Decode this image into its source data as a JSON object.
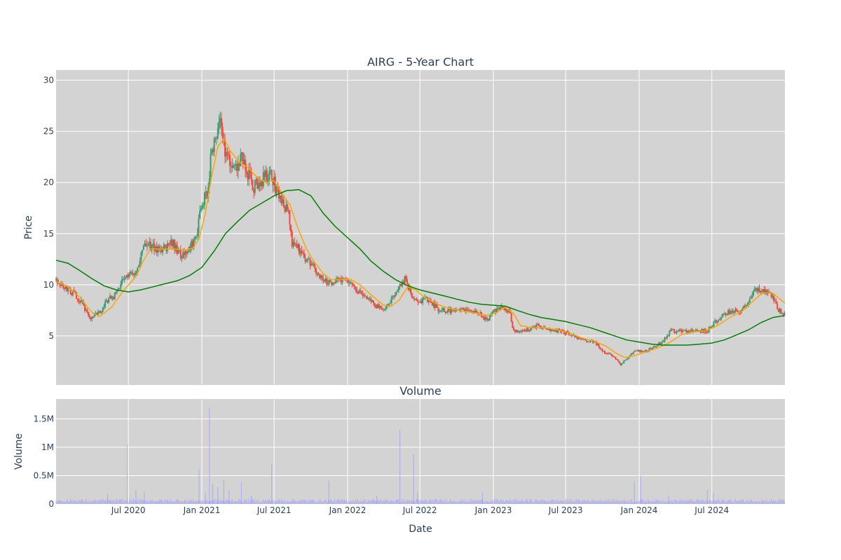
{
  "chart_data": [
    {
      "type": "candlestick",
      "title": "AIRG - 5-Year Chart",
      "ylabel": "Price",
      "ylim": [
        0.2,
        31
      ],
      "xlim": [
        "2020-01-02",
        "2024-12-31"
      ],
      "y_ticks": [
        "5",
        "10",
        "15",
        "20",
        "25",
        "30"
      ],
      "y_tick_values": [
        5,
        10,
        15,
        20,
        25,
        30
      ],
      "candle_colors": {
        "up": "#3d9970",
        "down": "#ff4136"
      },
      "price_path": [
        [
          "2020-01-02",
          10.5
        ],
        [
          "2020-02-01",
          9.5
        ],
        [
          "2020-02-20",
          9.0
        ],
        [
          "2020-03-10",
          8.0
        ],
        [
          "2020-03-25",
          6.8
        ],
        [
          "2020-04-10",
          7.0
        ],
        [
          "2020-04-25",
          7.5
        ],
        [
          "2020-05-10",
          8.5
        ],
        [
          "2020-06-01",
          9.0
        ],
        [
          "2020-06-15",
          10.5
        ],
        [
          "2020-07-01",
          10.8
        ],
        [
          "2020-07-20",
          11.0
        ],
        [
          "2020-08-05",
          13.5
        ],
        [
          "2020-08-20",
          14.0
        ],
        [
          "2020-09-10",
          13.5
        ],
        [
          "2020-10-01",
          13.5
        ],
        [
          "2020-10-20",
          14.0
        ],
        [
          "2020-11-10",
          13.0
        ],
        [
          "2020-12-01",
          13.5
        ],
        [
          "2020-12-20",
          15.0
        ],
        [
          "2020-12-30",
          17.5
        ],
        [
          "2021-01-15",
          19.0
        ],
        [
          "2021-01-25",
          23.0
        ],
        [
          "2021-02-05",
          24.0
        ],
        [
          "2021-02-15",
          26.5
        ],
        [
          "2021-02-25",
          23.5
        ],
        [
          "2021-03-10",
          22.5
        ],
        [
          "2021-03-25",
          21.0
        ],
        [
          "2021-04-10",
          22.5
        ],
        [
          "2021-04-25",
          21.0
        ],
        [
          "2021-05-10",
          19.5
        ],
        [
          "2021-05-25",
          20.0
        ],
        [
          "2021-06-10",
          20.5
        ],
        [
          "2021-06-25",
          20.5
        ],
        [
          "2021-07-10",
          19.0
        ],
        [
          "2021-07-25",
          17.5
        ],
        [
          "2021-08-05",
          18.0
        ],
        [
          "2021-08-15",
          14.0
        ],
        [
          "2021-09-01",
          13.5
        ],
        [
          "2021-09-20",
          12.5
        ],
        [
          "2021-10-10",
          11.5
        ],
        [
          "2021-10-30",
          10.5
        ],
        [
          "2021-11-20",
          10.0
        ],
        [
          "2021-12-15",
          10.5
        ],
        [
          "2022-01-05",
          10.5
        ],
        [
          "2022-01-25",
          9.5
        ],
        [
          "2022-02-15",
          9.0
        ],
        [
          "2022-03-10",
          8.0
        ],
        [
          "2022-04-01",
          7.5
        ],
        [
          "2022-04-20",
          8.5
        ],
        [
          "2022-05-10",
          10.0
        ],
        [
          "2022-05-25",
          10.5
        ],
        [
          "2022-06-10",
          9.0
        ],
        [
          "2022-07-01",
          8.5
        ],
        [
          "2022-07-25",
          8.5
        ],
        [
          "2022-08-20",
          7.5
        ],
        [
          "2022-09-20",
          7.5
        ],
        [
          "2022-10-20",
          7.5
        ],
        [
          "2022-11-20",
          7.5
        ],
        [
          "2022-12-15",
          6.5
        ],
        [
          "2023-01-05",
          7.5
        ],
        [
          "2023-01-20",
          8.0
        ],
        [
          "2023-02-10",
          7.5
        ],
        [
          "2023-02-20",
          5.5
        ],
        [
          "2023-03-20",
          5.5
        ],
        [
          "2023-04-20",
          6.0
        ],
        [
          "2023-05-20",
          5.5
        ],
        [
          "2023-06-20",
          5.5
        ],
        [
          "2023-07-20",
          5.0
        ],
        [
          "2023-08-20",
          4.5
        ],
        [
          "2023-09-10",
          4.5
        ],
        [
          "2023-10-01",
          3.5
        ],
        [
          "2023-10-30",
          3.0
        ],
        [
          "2023-11-15",
          2.2
        ],
        [
          "2023-12-01",
          2.8
        ],
        [
          "2023-12-20",
          3.5
        ],
        [
          "2024-01-20",
          3.5
        ],
        [
          "2024-02-10",
          4.0
        ],
        [
          "2024-03-01",
          4.5
        ],
        [
          "2024-03-20",
          5.5
        ],
        [
          "2024-04-20",
          5.5
        ],
        [
          "2024-05-20",
          5.5
        ],
        [
          "2024-06-20",
          5.5
        ],
        [
          "2024-07-10",
          6.5
        ],
        [
          "2024-07-30",
          7.0
        ],
        [
          "2024-08-20",
          7.5
        ],
        [
          "2024-09-10",
          7.5
        ],
        [
          "2024-09-30",
          8.0
        ],
        [
          "2024-10-15",
          9.5
        ],
        [
          "2024-11-05",
          9.5
        ],
        [
          "2024-11-25",
          9.0
        ],
        [
          "2024-12-15",
          7.5
        ],
        [
          "2024-12-31",
          7.0
        ]
      ],
      "series": [
        {
          "type": "line",
          "color": "#ffa500",
          "points": [
            [
              "2020-01-02",
              10.3
            ],
            [
              "2020-02-01",
              9.8
            ],
            [
              "2020-03-01",
              8.8
            ],
            [
              "2020-04-01",
              7.3
            ],
            [
              "2020-04-20",
              6.9
            ],
            [
              "2020-05-20",
              7.8
            ],
            [
              "2020-06-20",
              9.5
            ],
            [
              "2020-07-20",
              10.8
            ],
            [
              "2020-08-10",
              12.5
            ],
            [
              "2020-08-25",
              13.5
            ],
            [
              "2020-09-20",
              13.5
            ],
            [
              "2020-10-20",
              13.5
            ],
            [
              "2020-11-20",
              13.4
            ],
            [
              "2020-12-10",
              13.6
            ],
            [
              "2020-12-25",
              14.5
            ],
            [
              "2021-01-10",
              17.0
            ],
            [
              "2021-01-25",
              20.5
            ],
            [
              "2021-02-10",
              23.5
            ],
            [
              "2021-02-25",
              24.3
            ],
            [
              "2021-03-15",
              23.0
            ],
            [
              "2021-04-05",
              22.0
            ],
            [
              "2021-04-25",
              21.5
            ],
            [
              "2021-05-20",
              20.5
            ],
            [
              "2021-06-10",
              20.0
            ],
            [
              "2021-06-30",
              20.2
            ],
            [
              "2021-07-20",
              19.0
            ],
            [
              "2021-08-10",
              17.8
            ],
            [
              "2021-08-30",
              15.5
            ],
            [
              "2021-09-20",
              13.5
            ],
            [
              "2021-10-10",
              12.2
            ],
            [
              "2021-10-30",
              11.2
            ],
            [
              "2021-11-20",
              10.5
            ],
            [
              "2021-12-15",
              10.5
            ],
            [
              "2022-01-10",
              10.5
            ],
            [
              "2022-02-01",
              10.0
            ],
            [
              "2022-03-01",
              9.0
            ],
            [
              "2022-04-01",
              8.0
            ],
            [
              "2022-04-20",
              7.9
            ],
            [
              "2022-05-10",
              8.5
            ],
            [
              "2022-06-01",
              9.8
            ],
            [
              "2022-06-20",
              9.5
            ],
            [
              "2022-07-15",
              8.7
            ],
            [
              "2022-08-20",
              8.0
            ],
            [
              "2022-09-20",
              7.6
            ],
            [
              "2022-10-20",
              7.4
            ],
            [
              "2022-11-20",
              7.2
            ],
            [
              "2022-12-20",
              7.0
            ],
            [
              "2023-01-10",
              7.3
            ],
            [
              "2023-01-30",
              7.8
            ],
            [
              "2023-02-20",
              7.2
            ],
            [
              "2023-03-10",
              6.0
            ],
            [
              "2023-04-10",
              5.8
            ],
            [
              "2023-05-10",
              5.8
            ],
            [
              "2023-06-10",
              5.6
            ],
            [
              "2023-07-10",
              5.3
            ],
            [
              "2023-08-10",
              4.8
            ],
            [
              "2023-09-10",
              4.5
            ],
            [
              "2023-10-10",
              4.0
            ],
            [
              "2023-11-05",
              3.3
            ],
            [
              "2023-11-25",
              2.9
            ],
            [
              "2023-12-15",
              3.0
            ],
            [
              "2024-01-15",
              3.4
            ],
            [
              "2024-02-15",
              3.8
            ],
            [
              "2024-03-15",
              4.3
            ],
            [
              "2024-04-15",
              5.1
            ],
            [
              "2024-05-15",
              5.4
            ],
            [
              "2024-06-15",
              5.5
            ],
            [
              "2024-07-15",
              6.0
            ],
            [
              "2024-08-15",
              6.8
            ],
            [
              "2024-09-15",
              7.4
            ],
            [
              "2024-10-15",
              8.5
            ],
            [
              "2024-11-05",
              9.2
            ],
            [
              "2024-11-30",
              9.2
            ],
            [
              "2024-12-31",
              8.2
            ]
          ]
        },
        {
          "type": "line",
          "color": "#008000",
          "points": [
            [
              "2020-01-02",
              12.4
            ],
            [
              "2020-02-01",
              12.1
            ],
            [
              "2020-03-01",
              11.4
            ],
            [
              "2020-04-01",
              10.6
            ],
            [
              "2020-05-01",
              9.9
            ],
            [
              "2020-06-01",
              9.5
            ],
            [
              "2020-07-01",
              9.3
            ],
            [
              "2020-08-01",
              9.5
            ],
            [
              "2020-09-01",
              9.8
            ],
            [
              "2020-10-01",
              10.1
            ],
            [
              "2020-11-01",
              10.4
            ],
            [
              "2020-12-01",
              10.9
            ],
            [
              "2021-01-01",
              11.7
            ],
            [
              "2021-02-01",
              13.3
            ],
            [
              "2021-03-01",
              15.0
            ],
            [
              "2021-04-01",
              16.2
            ],
            [
              "2021-05-01",
              17.3
            ],
            [
              "2021-06-01",
              18.0
            ],
            [
              "2021-07-01",
              18.7
            ],
            [
              "2021-08-01",
              19.2
            ],
            [
              "2021-09-01",
              19.3
            ],
            [
              "2021-10-01",
              18.7
            ],
            [
              "2021-11-01",
              17.0
            ],
            [
              "2021-12-01",
              15.7
            ],
            [
              "2022-01-01",
              14.6
            ],
            [
              "2022-02-01",
              13.5
            ],
            [
              "2022-03-01",
              12.3
            ],
            [
              "2022-04-01",
              11.3
            ],
            [
              "2022-05-01",
              10.5
            ],
            [
              "2022-06-01",
              9.9
            ],
            [
              "2022-07-01",
              9.5
            ],
            [
              "2022-08-01",
              9.2
            ],
            [
              "2022-09-01",
              8.9
            ],
            [
              "2022-10-01",
              8.6
            ],
            [
              "2022-11-01",
              8.3
            ],
            [
              "2022-12-01",
              8.1
            ],
            [
              "2023-01-01",
              8.0
            ],
            [
              "2023-02-01",
              7.9
            ],
            [
              "2023-03-01",
              7.5
            ],
            [
              "2023-04-01",
              7.1
            ],
            [
              "2023-05-01",
              6.8
            ],
            [
              "2023-06-01",
              6.6
            ],
            [
              "2023-07-01",
              6.4
            ],
            [
              "2023-08-01",
              6.1
            ],
            [
              "2023-09-01",
              5.8
            ],
            [
              "2023-10-01",
              5.4
            ],
            [
              "2023-11-01",
              5.0
            ],
            [
              "2023-12-01",
              4.6
            ],
            [
              "2024-01-01",
              4.4
            ],
            [
              "2024-02-01",
              4.2
            ],
            [
              "2024-03-01",
              4.1
            ],
            [
              "2024-04-01",
              4.1
            ],
            [
              "2024-05-01",
              4.1
            ],
            [
              "2024-06-01",
              4.2
            ],
            [
              "2024-07-01",
              4.3
            ],
            [
              "2024-08-01",
              4.6
            ],
            [
              "2024-09-01",
              5.1
            ],
            [
              "2024-10-01",
              5.6
            ],
            [
              "2024-11-01",
              6.3
            ],
            [
              "2024-12-01",
              6.8
            ],
            [
              "2024-12-31",
              7.0
            ]
          ]
        }
      ],
      "grid": true
    },
    {
      "type": "bar",
      "title": "Volume",
      "xlabel": "Date",
      "ylabel": "Volume",
      "ylim": [
        0,
        1850000
      ],
      "y_ticks": [
        "0",
        "0.5M",
        "1M",
        "1.5M"
      ],
      "y_tick_values": [
        0,
        500000,
        1000000,
        1500000
      ],
      "x_ticks": [
        "Jul 2020",
        "Jan 2021",
        "Jul 2021",
        "Jan 2022",
        "Jul 2022",
        "Jan 2023",
        "Jul 2023",
        "Jan 2024",
        "Jul 2024"
      ],
      "x_tick_dates": [
        "2020-07-01",
        "2021-01-01",
        "2021-07-01",
        "2022-01-01",
        "2022-07-01",
        "2023-01-01",
        "2023-07-01",
        "2024-01-01",
        "2024-07-01"
      ],
      "color": "#9999ff",
      "baseline_volume": 50000,
      "spikes": [
        [
          "2020-06-28",
          1050000
        ],
        [
          "2020-05-10",
          180000
        ],
        [
          "2020-07-20",
          250000
        ],
        [
          "2020-08-10",
          220000
        ],
        [
          "2020-12-25",
          620000
        ],
        [
          "2021-01-10",
          200000
        ],
        [
          "2021-01-20",
          1700000
        ],
        [
          "2021-01-28",
          350000
        ],
        [
          "2021-02-10",
          300000
        ],
        [
          "2021-02-25",
          420000
        ],
        [
          "2021-03-10",
          250000
        ],
        [
          "2021-04-10",
          380000
        ],
        [
          "2021-06-25",
          700000
        ],
        [
          "2021-05-05",
          150000
        ],
        [
          "2021-11-15",
          400000
        ],
        [
          "2022-03-15",
          150000
        ],
        [
          "2022-05-12",
          1300000
        ],
        [
          "2022-06-15",
          880000
        ],
        [
          "2022-06-25",
          200000
        ],
        [
          "2022-12-05",
          200000
        ],
        [
          "2023-12-20",
          400000
        ],
        [
          "2024-01-05",
          500000
        ],
        [
          "2024-03-15",
          150000
        ],
        [
          "2024-06-20",
          250000
        ],
        [
          "2024-07-05",
          200000
        ]
      ],
      "grid": true
    }
  ]
}
